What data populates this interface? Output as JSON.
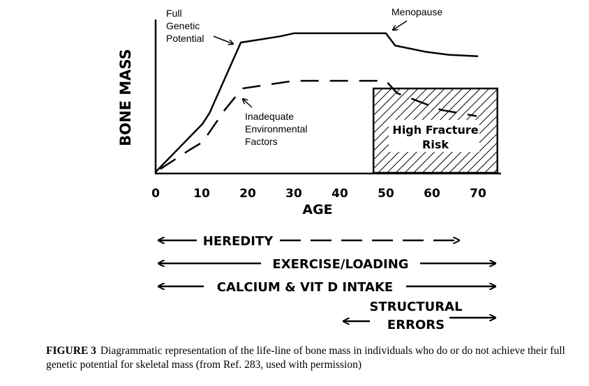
{
  "chart_data": {
    "type": "line",
    "title": "",
    "xlabel": "AGE",
    "ylabel": "BONE MASS",
    "xlim": [
      0,
      74
    ],
    "ylim": [
      0,
      100
    ],
    "xticks": [
      "0",
      "10",
      "20",
      "30",
      "40",
      "50",
      "60",
      "70"
    ],
    "xtick_values": [
      0,
      10,
      20,
      30,
      40,
      50,
      60,
      70
    ],
    "y_units": "relative (no scale shown)",
    "series": [
      {
        "name": "Full Genetic Potential",
        "style": "solid",
        "x": [
          0,
          10.2,
          11.7,
          18.5,
          27,
          30,
          50,
          52,
          58.5,
          63.6,
          70
        ],
        "y": [
          0.5,
          32,
          39,
          85,
          89,
          91,
          91,
          83,
          79,
          77,
          76
        ]
      },
      {
        "name": "Inadequate Environmental Factors",
        "style": "dashed",
        "x": [
          0,
          7.4,
          10.2,
          15,
          18.8,
          30,
          50,
          52.4,
          62,
          69.7
        ],
        "y": [
          0.5,
          15,
          20,
          41,
          55,
          60,
          60,
          52,
          41,
          37
        ]
      }
    ],
    "regions": [
      {
        "label": "High Fracture Risk",
        "x": [
          47.3,
          74.2
        ],
        "y": [
          0,
          55
        ],
        "fill": "hatched"
      }
    ],
    "annotations": {
      "full_genetic": "Full Genetic Potential",
      "full_genetic_lines": [
        "Full",
        "Genetic",
        "Potential"
      ],
      "menopause": "Menopause",
      "inadequate_lines": [
        "Inadequate",
        "Environmental",
        "Factors"
      ],
      "fracture_lines": [
        "High Fracture",
        "Risk"
      ]
    },
    "factors": [
      {
        "label": "HEREDITY",
        "x_range": [
          0,
          70
        ],
        "style": "solid then dashed"
      },
      {
        "label": "EXERCISE/LOADING",
        "x_range": [
          0,
          74
        ]
      },
      {
        "label": "CALCIUM & VIT D INTAKE",
        "x_range": [
          0,
          74
        ]
      },
      {
        "label": "STRUCTURAL ERRORS",
        "label_lines": [
          "STRUCTURAL",
          "ERRORS"
        ],
        "x_range": [
          41,
          74
        ]
      }
    ]
  },
  "caption": {
    "label": "FIGURE 3",
    "text": "Diagrammatic representation of the life-line of bone mass in individuals who do or do not achieve their full genetic potential for skeletal mass (from Ref. 283, used with permission)"
  }
}
